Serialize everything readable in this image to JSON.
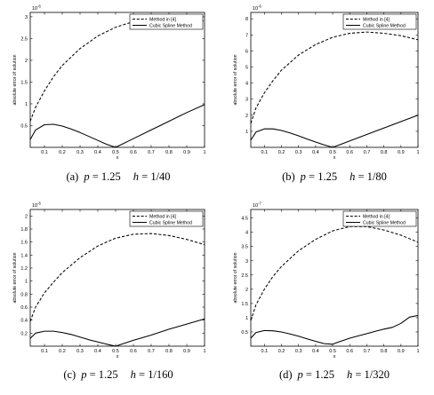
{
  "chart_data": [
    {
      "type": "line",
      "caption": {
        "label": "(a)",
        "pval": "1.25",
        "hval": "1/40"
      },
      "xlabel": "x",
      "ylabel": "absolute error of solution",
      "multiplier": "10",
      "multiplier_exp": "-6",
      "xlim": [
        0.02,
        1.0
      ],
      "ylim": [
        0.0,
        3.1
      ],
      "xticks": [
        "0.1",
        "0.2",
        "0.3",
        "0.4",
        "0.5",
        "0.6",
        "0.7",
        "0.8",
        "0.9",
        "1"
      ],
      "yticks": [
        "0.5",
        "1",
        "1.5",
        "2",
        "2.5",
        "3"
      ],
      "legend_position": "top-right",
      "series": [
        {
          "name": "Method in [4]",
          "style": "dashed",
          "x": [
            0.02,
            0.05,
            0.1,
            0.15,
            0.2,
            0.3,
            0.4,
            0.5,
            0.6,
            0.7,
            0.8,
            0.9,
            1.0
          ],
          "y": [
            0.6,
            0.92,
            1.3,
            1.62,
            1.88,
            2.27,
            2.56,
            2.76,
            2.89,
            2.96,
            2.98,
            2.96,
            2.9
          ]
        },
        {
          "name": "Cubic Spline Method",
          "style": "solid",
          "x": [
            0.02,
            0.05,
            0.1,
            0.15,
            0.2,
            0.25,
            0.3,
            0.35,
            0.4,
            0.45,
            0.5,
            0.6,
            0.7,
            0.8,
            0.9,
            1.0
          ],
          "y": [
            0.18,
            0.4,
            0.52,
            0.53,
            0.49,
            0.42,
            0.34,
            0.25,
            0.16,
            0.07,
            0.0,
            0.2,
            0.4,
            0.6,
            0.8,
            0.98
          ]
        }
      ]
    },
    {
      "type": "line",
      "caption": {
        "label": "(b)",
        "pval": "1.25",
        "hval": "1/80"
      },
      "xlabel": "x",
      "ylabel": "absolute error of solution",
      "multiplier": "10",
      "multiplier_exp": "-6",
      "xlim": [
        0.02,
        1.0
      ],
      "ylim": [
        0.0,
        8.4
      ],
      "xticks": [
        "0.1",
        "0.2",
        "0.3",
        "0.4",
        "0.5",
        "0.6",
        "0.7",
        "0.8",
        "0.9",
        "1"
      ],
      "yticks": [
        "1",
        "2",
        "3",
        "4",
        "5",
        "6",
        "7",
        "8"
      ],
      "legend_position": "top-right",
      "series": [
        {
          "name": "Method in [4]",
          "style": "dashed",
          "x": [
            0.02,
            0.05,
            0.1,
            0.15,
            0.2,
            0.3,
            0.4,
            0.5,
            0.6,
            0.7,
            0.8,
            0.9,
            1.0
          ],
          "y": [
            1.5,
            2.45,
            3.4,
            4.15,
            4.8,
            5.75,
            6.4,
            6.85,
            7.1,
            7.18,
            7.1,
            6.95,
            6.7
          ]
        },
        {
          "name": "Cubic Spline Method",
          "style": "solid",
          "x": [
            0.02,
            0.05,
            0.1,
            0.15,
            0.2,
            0.25,
            0.3,
            0.35,
            0.4,
            0.45,
            0.5,
            0.6,
            0.7,
            0.8,
            0.9,
            1.0
          ],
          "y": [
            0.45,
            0.95,
            1.15,
            1.15,
            1.05,
            0.9,
            0.72,
            0.52,
            0.33,
            0.15,
            0.0,
            0.4,
            0.8,
            1.2,
            1.6,
            2.0
          ]
        }
      ]
    },
    {
      "type": "line",
      "caption": {
        "label": "(c)",
        "pval": "1.25",
        "hval": "1/160"
      },
      "xlabel": "x",
      "ylabel": "absolute error of solution",
      "multiplier": "10",
      "multiplier_exp": "-6",
      "xlim": [
        0.02,
        1.0
      ],
      "ylim": [
        0.0,
        2.1
      ],
      "xticks": [
        "0.1",
        "0.2",
        "0.3",
        "0.4",
        "0.5",
        "0.6",
        "0.7",
        "0.8",
        "0.9",
        "1"
      ],
      "yticks": [
        "0.2",
        "0.4",
        "0.6",
        "0.8",
        "1",
        "1.2",
        "1.4",
        "1.6",
        "1.8",
        "2"
      ],
      "legend_position": "top-right",
      "series": [
        {
          "name": "Method in [4]",
          "style": "dashed",
          "x": [
            0.02,
            0.05,
            0.1,
            0.15,
            0.2,
            0.3,
            0.4,
            0.5,
            0.6,
            0.7,
            0.8,
            0.9,
            1.0
          ],
          "y": [
            0.38,
            0.6,
            0.82,
            0.98,
            1.13,
            1.36,
            1.54,
            1.66,
            1.72,
            1.73,
            1.7,
            1.64,
            1.56
          ]
        },
        {
          "name": "Cubic Spline Method",
          "style": "solid",
          "x": [
            0.02,
            0.05,
            0.1,
            0.15,
            0.2,
            0.25,
            0.3,
            0.35,
            0.4,
            0.45,
            0.5,
            0.6,
            0.7,
            0.8,
            0.9,
            1.0
          ],
          "y": [
            0.12,
            0.2,
            0.23,
            0.23,
            0.21,
            0.18,
            0.14,
            0.1,
            0.065,
            0.03,
            0.0,
            0.09,
            0.17,
            0.26,
            0.34,
            0.42
          ]
        }
      ]
    },
    {
      "type": "line",
      "caption": {
        "label": "(d)",
        "pval": "1.25",
        "hval": "1/320"
      },
      "xlabel": "x",
      "ylabel": "absolute error of solution",
      "multiplier": "10",
      "multiplier_exp": "-7",
      "xlim": [
        0.02,
        1.0
      ],
      "ylim": [
        0.0,
        4.8
      ],
      "xticks": [
        "0.1",
        "0.2",
        "0.3",
        "0.4",
        "0.5",
        "0.6",
        "0.7",
        "0.8",
        "0.9",
        "1"
      ],
      "yticks": [
        "0.5",
        "1",
        "1.5",
        "2",
        "2.5",
        "3",
        "3.5",
        "4",
        "4.5"
      ],
      "legend_position": "top-right",
      "series": [
        {
          "name": "Method in [4]",
          "style": "dashed",
          "x": [
            0.02,
            0.05,
            0.1,
            0.15,
            0.2,
            0.3,
            0.4,
            0.5,
            0.6,
            0.7,
            0.8,
            0.9,
            1.0
          ],
          "y": [
            0.9,
            1.45,
            2.0,
            2.45,
            2.8,
            3.35,
            3.75,
            4.05,
            4.2,
            4.2,
            4.08,
            3.9,
            3.65
          ]
        },
        {
          "name": "Cubic Spline Method",
          "style": "solid",
          "x": [
            0.02,
            0.05,
            0.1,
            0.15,
            0.2,
            0.25,
            0.3,
            0.35,
            0.4,
            0.45,
            0.5,
            0.55,
            0.6,
            0.65,
            0.7,
            0.75,
            0.8,
            0.85,
            0.9,
            0.95,
            1.0
          ],
          "y": [
            0.28,
            0.48,
            0.55,
            0.54,
            0.5,
            0.43,
            0.35,
            0.26,
            0.17,
            0.09,
            0.07,
            0.18,
            0.28,
            0.36,
            0.44,
            0.52,
            0.6,
            0.66,
            0.8,
            1.02,
            1.08
          ]
        }
      ]
    }
  ]
}
